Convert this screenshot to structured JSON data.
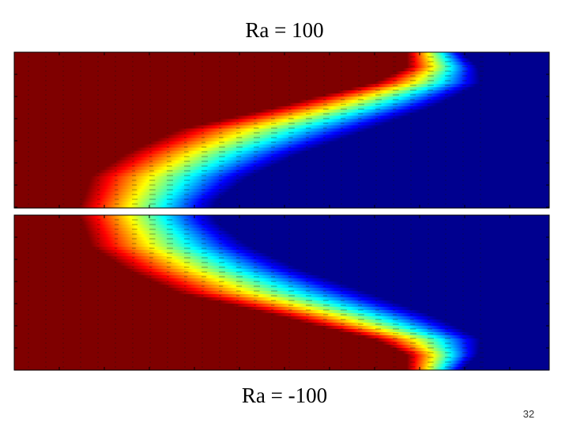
{
  "slide": {
    "top_label": "Ra = 100",
    "bottom_label": "Ra = -100",
    "page_number": "32"
  }
}
